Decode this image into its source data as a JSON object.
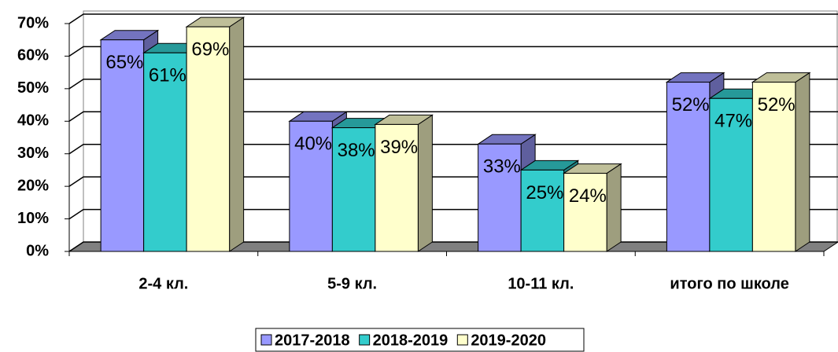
{
  "chart_data": {
    "type": "bar3d",
    "categories": [
      "2-4 кл.",
      "5-9 кл.",
      "10-11 кл.",
      "итого по школе"
    ],
    "series": [
      {
        "name": "2017-2018",
        "color": "#9999ff",
        "values": [
          65,
          40,
          33,
          52
        ],
        "value_labels": [
          "65%",
          "40%",
          "33%",
          "52%"
        ]
      },
      {
        "name": "2018-2019",
        "color": "#33cccc",
        "values": [
          61,
          38,
          25,
          47
        ],
        "value_labels": [
          "61%",
          "38%",
          "25%",
          "47%"
        ]
      },
      {
        "name": "2019-2020",
        "color": "#ffffcc",
        "values": [
          69,
          39,
          24,
          52
        ],
        "value_labels": [
          "69%",
          "39%",
          "24%",
          "52%"
        ]
      }
    ],
    "ylim": [
      0,
      70
    ],
    "yticks": [
      {
        "value": 0,
        "label": "0%"
      },
      {
        "value": 10,
        "label": "10%"
      },
      {
        "value": 20,
        "label": "20%"
      },
      {
        "value": 30,
        "label": "30%"
      },
      {
        "value": 40,
        "label": "40%"
      },
      {
        "value": 50,
        "label": "50%"
      },
      {
        "value": 60,
        "label": "60%"
      },
      {
        "value": 70,
        "label": "70%"
      }
    ],
    "grid": true,
    "legend": "bottom"
  }
}
